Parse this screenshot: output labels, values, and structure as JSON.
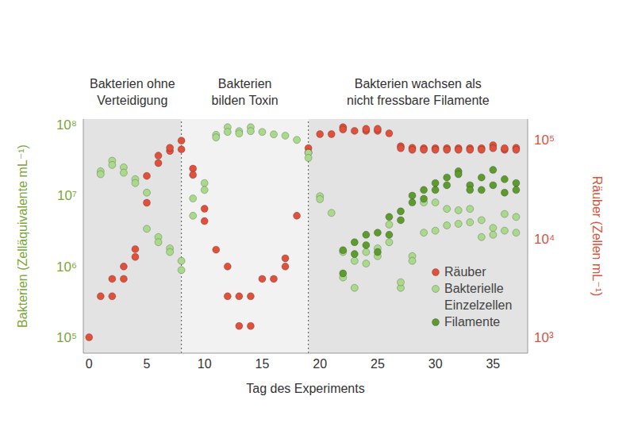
{
  "chart_data": {
    "type": "scatter",
    "x_label": "Tag des Experiments",
    "y_label": "Bakterien (Zelläquivalente mL⁻¹)",
    "y2_label": "Räuber (Zellen mL⁻¹)",
    "log": "y",
    "grid": false,
    "legend": "lower right",
    "xlim": [
      -0.5,
      38
    ],
    "xticks": [
      0,
      5,
      10,
      15,
      20,
      25,
      30,
      35
    ],
    "ylim": [
      60000,
      120000000
    ],
    "yticks": [
      {
        "value": 100000,
        "label": "10⁵"
      },
      {
        "value": 1000000,
        "label": "10⁶"
      },
      {
        "value": 10000000,
        "label": "10⁷"
      },
      {
        "value": 100000000,
        "label": "10⁸"
      }
    ],
    "y2lim": [
      690,
      162000
    ],
    "y2ticks": [
      {
        "value": 1000,
        "label": "10³"
      },
      {
        "value": 10000,
        "label": "10⁴"
      },
      {
        "value": 100000,
        "label": "10⁵"
      }
    ],
    "phases": [
      {
        "label": [
          "Bakterien ohne",
          "Verteidigung"
        ],
        "start": -0.5,
        "end": 8,
        "color": "#e3e3e3"
      },
      {
        "label": [
          "Bakterien",
          "bilden Toxin"
        ],
        "start": 8,
        "end": 19,
        "color": "#f2f2f2"
      },
      {
        "label": [
          "Bakterien wachsen als",
          "nicht fressbare Filamente"
        ],
        "start": 19,
        "end": 38,
        "color": "#e3e3e3"
      }
    ],
    "series": [
      {
        "name": "Räuber",
        "color": "#e0513b",
        "marker": "circle",
        "axis": "y2",
        "x": [
          0,
          1,
          2,
          2,
          3,
          3,
          4,
          4,
          5,
          5,
          6,
          6,
          7,
          7,
          8,
          8,
          9,
          9,
          10,
          10,
          11,
          12,
          12,
          13,
          13,
          14,
          14,
          15,
          16,
          17,
          17,
          18,
          19,
          19,
          20,
          21,
          22,
          22,
          23,
          24,
          24,
          25,
          25,
          26,
          27,
          27,
          28,
          28,
          29,
          29,
          30,
          30,
          31,
          31,
          32,
          32,
          33,
          33,
          34,
          34,
          35,
          35,
          36,
          36,
          37,
          37
        ],
        "values": [
          1000,
          2600,
          2600,
          3900,
          3900,
          5200,
          6500,
          7800,
          23000,
          43000,
          58000,
          69000,
          77000,
          83000,
          98000,
          80000,
          51000,
          44000,
          20000,
          15000,
          7700,
          5200,
          2600,
          2600,
          1300,
          2600,
          1300,
          3900,
          3900,
          6300,
          5200,
          17000,
          82000,
          74000,
          114000,
          114000,
          134000,
          127000,
          123000,
          123000,
          129000,
          123000,
          129000,
          116000,
          86000,
          82000,
          83000,
          79000,
          82000,
          79000,
          82000,
          79000,
          82000,
          79000,
          82000,
          79000,
          82000,
          79000,
          82000,
          79000,
          88000,
          82000,
          79000,
          82000,
          83000,
          79000
        ]
      },
      {
        "name": "Bakterielle Einzelzellen",
        "color": "#a9d98a",
        "marker": "circle",
        "x": [
          1,
          1,
          2,
          2,
          3,
          3,
          4,
          4,
          5,
          5,
          6,
          6,
          7,
          7,
          8,
          8,
          9,
          9,
          10,
          10,
          11,
          11,
          12,
          12,
          13,
          13,
          14,
          14,
          15,
          16,
          17,
          18,
          19,
          19,
          20,
          20,
          21,
          22,
          22,
          23,
          23,
          24,
          24,
          25,
          25,
          26,
          26,
          27,
          27,
          28,
          28,
          29,
          29,
          30,
          30,
          31,
          31,
          32,
          32,
          33,
          33,
          34,
          34,
          35,
          35,
          36,
          36,
          37,
          37
        ],
        "values": [
          22000000,
          20000000,
          31000000,
          27000000,
          25000000,
          21000000,
          17000000,
          15000000,
          11000000,
          3400000,
          2600000,
          2200000,
          1800000,
          1600000,
          1200000,
          890000,
          9100000,
          5200000,
          15000000,
          12000000,
          72000000,
          66000000,
          92000000,
          79000000,
          81000000,
          75000000,
          92000000,
          81000000,
          79000000,
          73000000,
          70000000,
          61000000,
          40000000,
          34000000,
          9800000,
          8900000,
          5700000,
          700000,
          1600000,
          500000,
          1200000,
          1600000,
          1100000,
          1400000,
          1800000,
          2200000,
          3900000,
          500000,
          600000,
          1400000,
          1200000,
          8000000,
          3000000,
          3200000,
          8000000,
          6500000,
          3800000,
          6200000,
          4000000,
          6500000,
          4200000,
          4500000,
          2600000,
          3500000,
          2800000,
          5500000,
          3200000,
          5000000,
          3000000
        ]
      },
      {
        "name": "Filamente",
        "color": "#5e9b2f",
        "marker": "circle",
        "x": [
          22,
          22,
          23,
          23,
          24,
          24,
          25,
          25,
          26,
          26,
          27,
          27,
          28,
          28,
          29,
          29,
          30,
          30,
          31,
          31,
          32,
          32,
          33,
          33,
          34,
          34,
          35,
          35,
          36,
          36,
          37,
          37
        ],
        "values": [
          1700000,
          800000,
          2200000,
          1500000,
          2800000,
          2000000,
          3000000,
          1600000,
          5000000,
          2800000,
          6000000,
          4500000,
          10000000,
          8000000,
          12000000,
          9000000,
          15000000,
          12000000,
          18000000,
          14000000,
          22000000,
          20000000,
          14000000,
          12000000,
          18000000,
          12000000,
          23000000,
          14000000,
          17000000,
          11000000,
          15000000,
          12000000
        ]
      }
    ]
  }
}
